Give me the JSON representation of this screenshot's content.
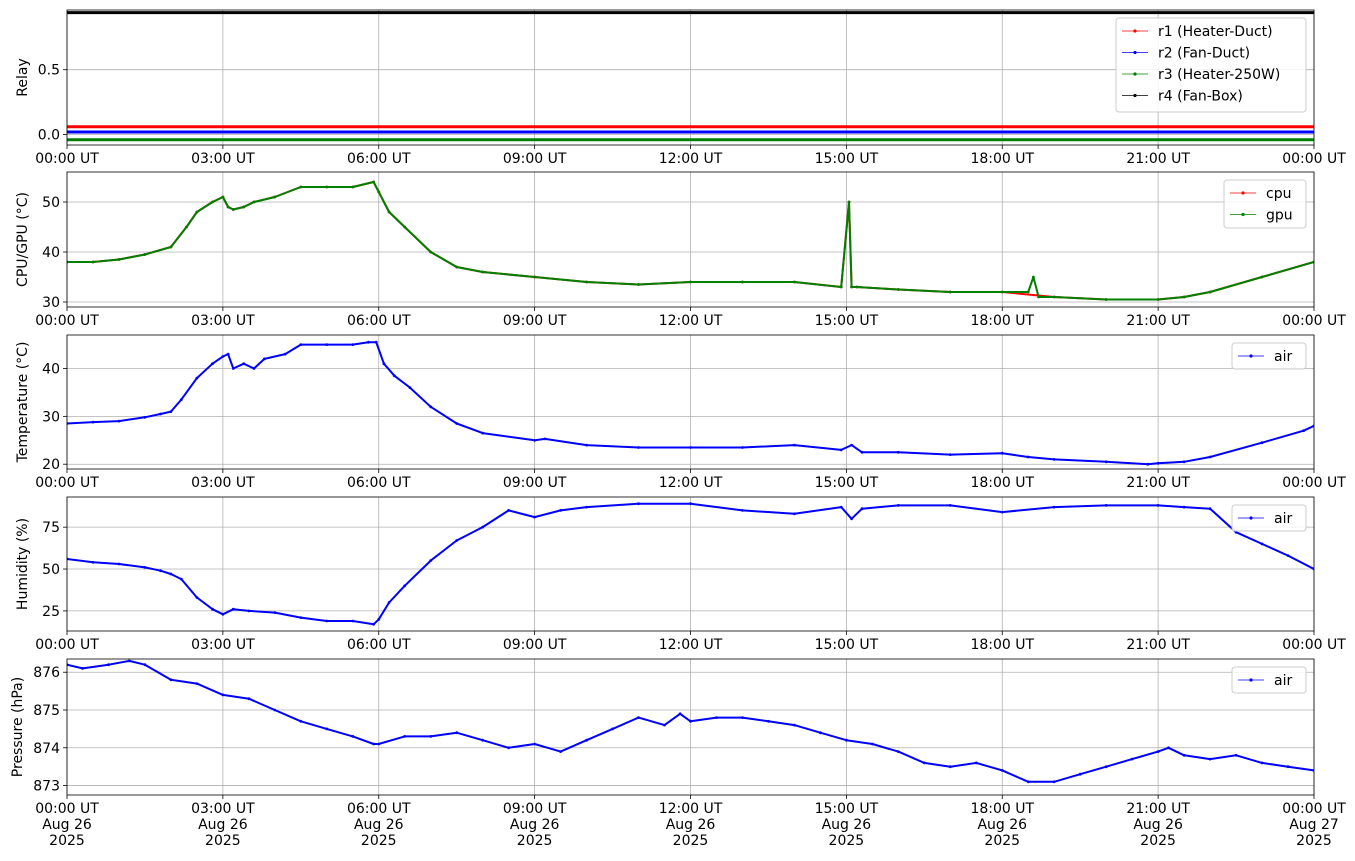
{
  "chart_data": [
    {
      "type": "line",
      "ylabel": "Relay",
      "ylim": [
        -0.08,
        0.96
      ],
      "yticks": [
        0.0,
        0.5
      ],
      "ytick_labels": [
        "0.0",
        "0.5"
      ],
      "xticks": [
        "00:00 UT",
        "03:00 UT",
        "06:00 UT",
        "09:00 UT",
        "12:00 UT",
        "15:00 UT",
        "18:00 UT",
        "21:00 UT",
        "00:00 UT"
      ],
      "grid": true,
      "legend_position": "top-right",
      "series": [
        {
          "name": "r1 (Heater-Duct)",
          "color": "#ff0000",
          "x": [
            0,
            24
          ],
          "y": [
            0.06,
            0.06
          ]
        },
        {
          "name": "r2 (Fan-Duct)",
          "color": "#0000ff",
          "x": [
            0,
            24
          ],
          "y": [
            0.02,
            0.02
          ]
        },
        {
          "name": "r3 (Heater-250W)",
          "color": "#008000",
          "x": [
            0,
            24
          ],
          "y": [
            -0.04,
            -0.04
          ]
        },
        {
          "name": "r4 (Fan-Box)",
          "color": "#000000",
          "x": [
            0,
            24
          ],
          "y": [
            0.94,
            0.94
          ]
        }
      ]
    },
    {
      "type": "line",
      "ylabel": "CPU/GPU (°C)",
      "ylim": [
        29,
        56
      ],
      "yticks": [
        30,
        40,
        50
      ],
      "ytick_labels": [
        "30",
        "40",
        "50"
      ],
      "xticks": [
        "00:00 UT",
        "03:00 UT",
        "06:00 UT",
        "09:00 UT",
        "12:00 UT",
        "15:00 UT",
        "18:00 UT",
        "21:00 UT",
        "00:00 UT"
      ],
      "grid": true,
      "legend_position": "top-right",
      "series": [
        {
          "name": "cpu",
          "color": "#ff0000",
          "x": [
            0,
            0.5,
            1.0,
            1.5,
            2.0,
            2.3,
            2.5,
            2.8,
            3.0,
            3.1,
            3.2,
            3.4,
            3.6,
            4.0,
            4.5,
            5.0,
            5.5,
            5.9,
            6.0,
            6.2,
            6.5,
            7.0,
            7.5,
            8.0,
            9.0,
            10.0,
            11.0,
            12.0,
            13.0,
            14.0,
            14.9,
            15.05,
            15.1,
            15.2,
            16.0,
            17.0,
            18.0,
            19.0,
            20.0,
            21.0,
            21.5,
            22.0,
            23.0,
            24.0
          ],
          "y": [
            38,
            38,
            38.5,
            39.5,
            41,
            45,
            48,
            50,
            51,
            49,
            48.5,
            49,
            50,
            51,
            53,
            53,
            53,
            54,
            52,
            48,
            45,
            40,
            37,
            36,
            35,
            34,
            33.5,
            34,
            34,
            34,
            33,
            50,
            33,
            33,
            32.5,
            32,
            32,
            31,
            30.5,
            30.5,
            31,
            32,
            35,
            38
          ]
        },
        {
          "name": "gpu",
          "color": "#008000",
          "x": [
            0,
            0.5,
            1.0,
            1.5,
            2.0,
            2.3,
            2.5,
            2.8,
            3.0,
            3.1,
            3.2,
            3.4,
            3.6,
            4.0,
            4.5,
            5.0,
            5.5,
            5.9,
            6.0,
            6.2,
            6.5,
            7.0,
            7.5,
            8.0,
            9.0,
            10.0,
            11.0,
            12.0,
            13.0,
            14.0,
            14.9,
            15.05,
            15.1,
            15.2,
            16.0,
            17.0,
            18.0,
            18.5,
            18.6,
            18.7,
            19.0,
            20.0,
            21.0,
            21.5,
            22.0,
            23.0,
            24.0
          ],
          "y": [
            38,
            38,
            38.5,
            39.5,
            41,
            45,
            48,
            50,
            51,
            49,
            48.5,
            49,
            50,
            51,
            53,
            53,
            53,
            54,
            52,
            48,
            45,
            40,
            37,
            36,
            35,
            34,
            33.5,
            34,
            34,
            34,
            33,
            50,
            33,
            33,
            32.5,
            32,
            32,
            32,
            35,
            31,
            31,
            30.5,
            30.5,
            31,
            32,
            35,
            38
          ]
        }
      ]
    },
    {
      "type": "line",
      "ylabel": "Temperature (°C)",
      "ylim": [
        19,
        47
      ],
      "yticks": [
        20,
        30,
        40
      ],
      "ytick_labels": [
        "20",
        "30",
        "40"
      ],
      "xticks": [
        "00:00 UT",
        "03:00 UT",
        "06:00 UT",
        "09:00 UT",
        "12:00 UT",
        "15:00 UT",
        "18:00 UT",
        "21:00 UT",
        "00:00 UT"
      ],
      "grid": true,
      "legend_position": "top-right",
      "series": [
        {
          "name": "air",
          "color": "#0000ff",
          "x": [
            0,
            0.5,
            1.0,
            1.5,
            1.8,
            2.0,
            2.2,
            2.5,
            2.8,
            3.0,
            3.1,
            3.2,
            3.4,
            3.6,
            3.8,
            4.2,
            4.5,
            5.0,
            5.5,
            5.8,
            5.95,
            6.1,
            6.3,
            6.6,
            7.0,
            7.5,
            8.0,
            9.0,
            9.2,
            10.0,
            11.0,
            12.0,
            13.0,
            14.0,
            14.9,
            15.1,
            15.3,
            16.0,
            17.0,
            18.0,
            18.5,
            19.0,
            20.0,
            20.8,
            21.0,
            21.5,
            22.0,
            23.0,
            23.8,
            24.0
          ],
          "y": [
            28.5,
            28.8,
            29,
            29.8,
            30.5,
            31,
            33.5,
            38,
            41,
            42.5,
            43,
            40,
            41,
            40,
            42,
            43,
            45,
            45,
            45,
            45.5,
            45.5,
            41,
            38.5,
            36,
            32,
            28.5,
            26.5,
            25,
            25.3,
            24,
            23.5,
            23.5,
            23.5,
            24,
            23,
            24,
            22.5,
            22.5,
            22,
            22.3,
            21.5,
            21,
            20.5,
            20,
            20.2,
            20.5,
            21.5,
            24.5,
            27,
            28
          ]
        }
      ]
    },
    {
      "type": "line",
      "ylabel": "Humidity (%)",
      "ylim": [
        13,
        93
      ],
      "yticks": [
        25,
        50,
        75
      ],
      "ytick_labels": [
        "25",
        "50",
        "75"
      ],
      "xticks": [
        "00:00 UT",
        "03:00 UT",
        "06:00 UT",
        "09:00 UT",
        "12:00 UT",
        "15:00 UT",
        "18:00 UT",
        "21:00 UT",
        "00:00 UT"
      ],
      "grid": true,
      "legend_position": "top-right",
      "series": [
        {
          "name": "air",
          "color": "#0000ff",
          "x": [
            0,
            0.5,
            1.0,
            1.5,
            1.8,
            2.0,
            2.2,
            2.5,
            2.8,
            3.0,
            3.2,
            3.5,
            4.0,
            4.5,
            5.0,
            5.5,
            5.9,
            6.0,
            6.2,
            6.5,
            7.0,
            7.5,
            8.0,
            8.5,
            9.0,
            9.5,
            10.0,
            11.0,
            12.0,
            13.0,
            14.0,
            14.9,
            15.1,
            15.3,
            16.0,
            17.0,
            18.0,
            19.0,
            20.0,
            21.0,
            21.5,
            22.0,
            22.5,
            23.0,
            23.5,
            24.0
          ],
          "y": [
            56,
            54,
            53,
            51,
            49,
            47,
            44,
            33,
            26,
            23,
            26,
            25,
            24,
            21,
            19,
            19,
            17,
            20,
            30,
            40,
            55,
            67,
            75,
            85,
            81,
            85,
            87,
            89,
            89,
            85,
            83,
            87,
            80,
            86,
            88,
            88,
            84,
            87,
            88,
            88,
            87,
            86,
            72,
            65,
            58,
            50
          ]
        }
      ]
    },
    {
      "type": "line",
      "ylabel": "Pressure (hPa)",
      "ylim": [
        872.75,
        876.35
      ],
      "yticks": [
        873,
        874,
        875,
        876
      ],
      "ytick_labels": [
        "873",
        "874",
        "875",
        "876"
      ],
      "xticks": [
        "00:00 UT\nAug 26\n2025",
        "03:00 UT\nAug 26\n2025",
        "06:00 UT\nAug 26\n2025",
        "09:00 UT\nAug 26\n2025",
        "12:00 UT\nAug 26\n2025",
        "15:00 UT\nAug 26\n2025",
        "18:00 UT\nAug 26\n2025",
        "21:00 UT\nAug 26\n2025",
        "00:00 UT\nAug 27\n2025"
      ],
      "grid": true,
      "legend_position": "top-right",
      "series": [
        {
          "name": "air",
          "color": "#0000ff",
          "x": [
            0,
            0.3,
            0.8,
            1.2,
            1.5,
            2.0,
            2.5,
            3.0,
            3.5,
            4.0,
            4.5,
            5.0,
            5.5,
            5.9,
            6.0,
            6.5,
            7.0,
            7.5,
            8.0,
            8.5,
            9.0,
            9.5,
            10.0,
            10.5,
            11.0,
            11.5,
            11.8,
            12.0,
            12.5,
            13.0,
            13.5,
            14.0,
            14.5,
            15.0,
            15.5,
            16.0,
            16.5,
            17.0,
            17.5,
            18.0,
            18.5,
            19.0,
            19.5,
            20.0,
            20.5,
            21.0,
            21.2,
            21.5,
            22.0,
            22.5,
            23.0,
            23.5,
            24.0
          ],
          "y": [
            876.2,
            876.1,
            876.2,
            876.3,
            876.2,
            875.8,
            875.7,
            875.4,
            875.3,
            875.0,
            874.7,
            874.5,
            874.3,
            874.1,
            874.1,
            874.3,
            874.3,
            874.4,
            874.2,
            874.0,
            874.1,
            873.9,
            874.2,
            874.5,
            874.8,
            874.6,
            874.9,
            874.7,
            874.8,
            874.8,
            874.7,
            874.6,
            874.4,
            874.2,
            874.1,
            873.9,
            873.6,
            873.5,
            873.6,
            873.4,
            873.1,
            873.1,
            873.3,
            873.5,
            873.7,
            873.9,
            874.0,
            873.8,
            873.7,
            873.8,
            873.6,
            873.5,
            873.4
          ]
        }
      ]
    }
  ]
}
